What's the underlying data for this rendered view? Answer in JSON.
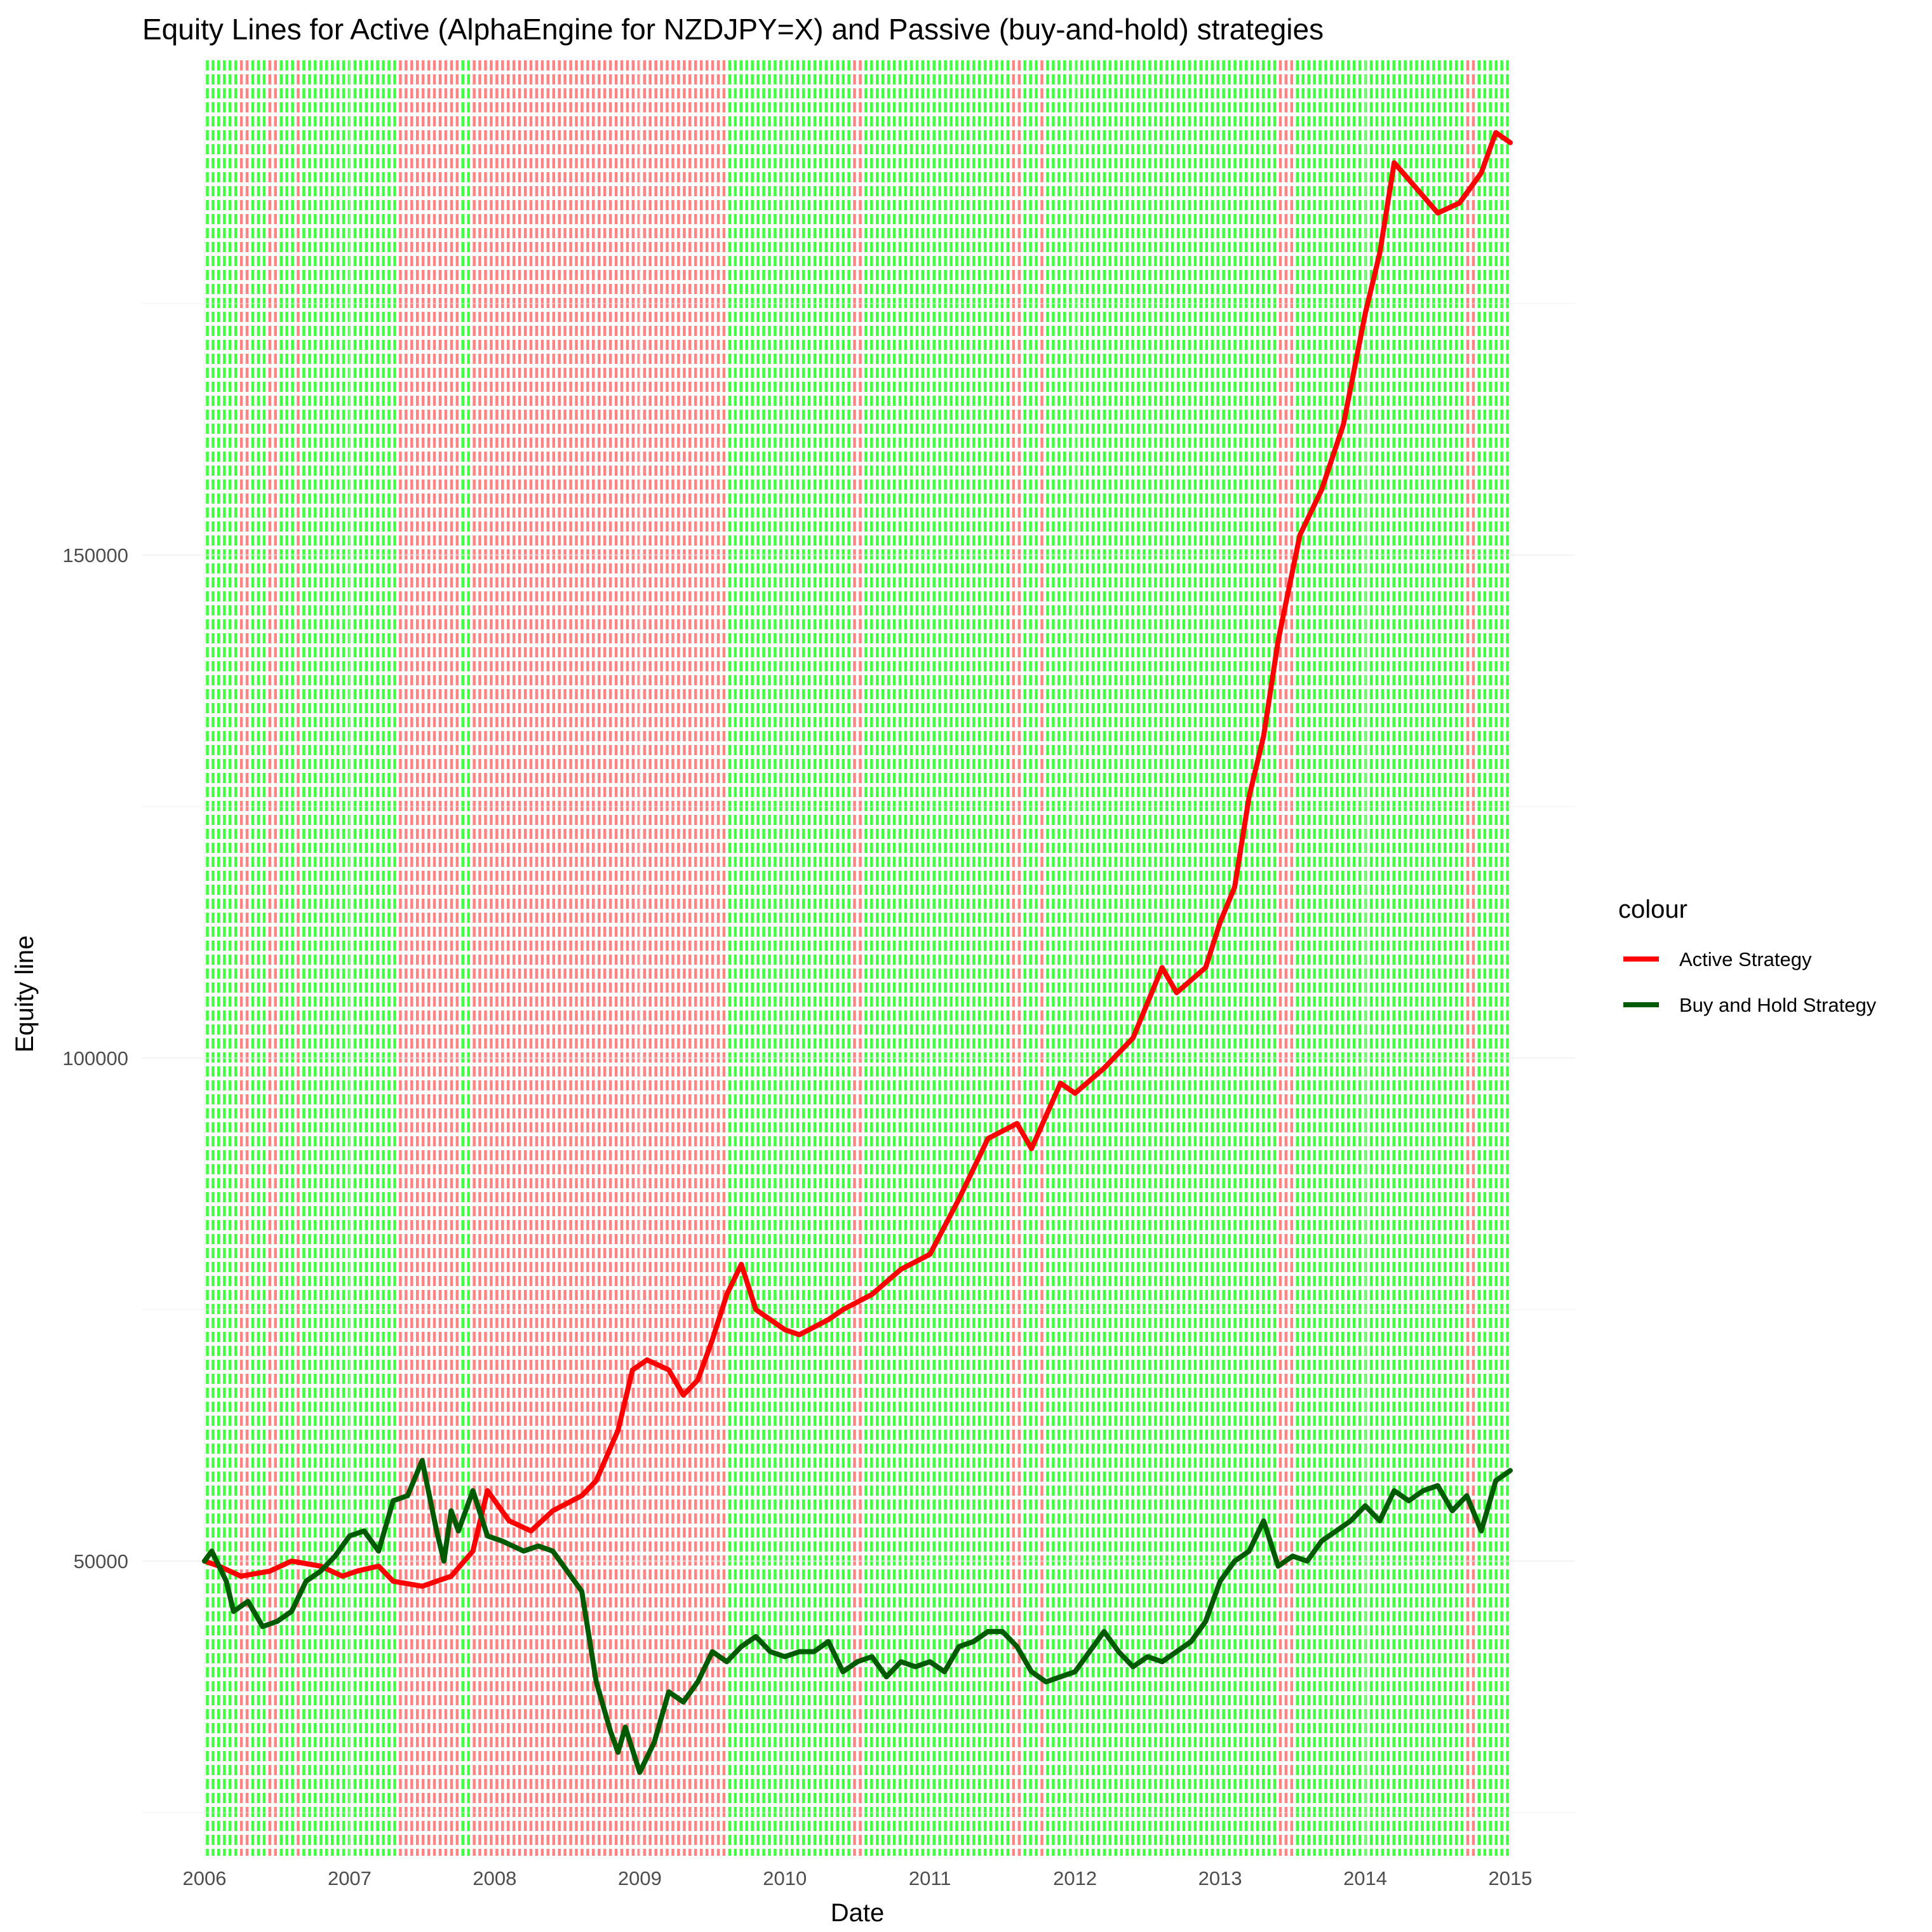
{
  "chart_data": {
    "type": "line",
    "title": "Equity Lines for Active (AlphaEngine for NZDJPY=X) and Passive (buy-and-hold) strategies",
    "xlabel": "Date",
    "ylabel": "Equity line",
    "x_ticks": [
      "2006",
      "2007",
      "2008",
      "2009",
      "2010",
      "2011",
      "2012",
      "2013",
      "2014",
      "2015"
    ],
    "y_ticks": [
      50000,
      100000,
      150000
    ],
    "xlim": [
      2006.0,
      2015.0
    ],
    "ylim": [
      24000,
      200000
    ],
    "grid": true,
    "legend": {
      "title": "colour",
      "placement": "right",
      "entries": [
        {
          "label": "Active Strategy",
          "color": "#ff0000"
        },
        {
          "label": "Buy and Hold Strategy",
          "color": "#005a00"
        }
      ]
    },
    "background_signal_colors": {
      "long": "#00ff00",
      "short": "#ff5a5a"
    },
    "short_signal_periods": [
      [
        2006.25,
        2006.3
      ],
      [
        2006.45,
        2006.5
      ],
      [
        2006.62,
        2006.68
      ],
      [
        2007.35,
        2007.75
      ],
      [
        2007.85,
        2009.6
      ],
      [
        2010.45,
        2010.55
      ],
      [
        2011.55,
        2011.65
      ],
      [
        2011.75,
        2011.8
      ],
      [
        2013.4,
        2013.52
      ],
      [
        2014.7,
        2014.75
      ]
    ],
    "series": [
      {
        "name": "Active Strategy",
        "color": "#ff0000",
        "x": [
          2006.0,
          2006.1,
          2006.25,
          2006.45,
          2006.6,
          2006.8,
          2006.95,
          2007.05,
          2007.2,
          2007.3,
          2007.5,
          2007.6,
          2007.7,
          2007.85,
          2007.95,
          2008.1,
          2008.25,
          2008.4,
          2008.6,
          2008.7,
          2008.85,
          2008.95,
          2009.05,
          2009.2,
          2009.3,
          2009.4,
          2009.5,
          2009.6,
          2009.7,
          2009.8,
          2009.9,
          2010.0,
          2010.1,
          2010.3,
          2010.4,
          2010.6,
          2010.8,
          2011.0,
          2011.2,
          2011.4,
          2011.6,
          2011.7,
          2011.9,
          2012.0,
          2012.2,
          2012.4,
          2012.6,
          2012.7,
          2012.9,
          2013.0,
          2013.1,
          2013.2,
          2013.3,
          2013.4,
          2013.55,
          2013.7,
          2013.85,
          2014.0,
          2014.1,
          2014.2,
          2014.35,
          2014.5,
          2014.65,
          2014.8,
          2014.9,
          2015.0
        ],
        "values": [
          50000,
          49500,
          48500,
          49000,
          50000,
          49500,
          48500,
          49000,
          49500,
          48000,
          47500,
          48000,
          48500,
          51000,
          57000,
          54000,
          53000,
          55000,
          56500,
          58000,
          63000,
          69000,
          70000,
          69000,
          66500,
          68000,
          72000,
          76500,
          79500,
          75000,
          74000,
          73000,
          72500,
          74000,
          75000,
          76500,
          79000,
          80500,
          86000,
          92000,
          93500,
          91000,
          97500,
          96500,
          99000,
          102000,
          109000,
          106500,
          109000,
          113500,
          117000,
          126000,
          132000,
          141500,
          152000,
          156500,
          163000,
          174000,
          180000,
          189000,
          186500,
          184000,
          185000,
          188000,
          192000,
          191000
        ]
      },
      {
        "name": "Buy and Hold Strategy",
        "color": "#005a00",
        "x": [
          2006.0,
          2006.05,
          2006.15,
          2006.2,
          2006.3,
          2006.4,
          2006.5,
          2006.6,
          2006.7,
          2006.8,
          2006.9,
          2007.0,
          2007.1,
          2007.2,
          2007.3,
          2007.4,
          2007.5,
          2007.6,
          2007.65,
          2007.7,
          2007.75,
          2007.85,
          2007.95,
          2008.05,
          2008.2,
          2008.3,
          2008.4,
          2008.5,
          2008.6,
          2008.7,
          2008.8,
          2008.85,
          2008.9,
          2009.0,
          2009.1,
          2009.2,
          2009.3,
          2009.4,
          2009.5,
          2009.6,
          2009.7,
          2009.8,
          2009.9,
          2010.0,
          2010.1,
          2010.2,
          2010.3,
          2010.4,
          2010.5,
          2010.6,
          2010.7,
          2010.8,
          2010.9,
          2011.0,
          2011.1,
          2011.2,
          2011.3,
          2011.4,
          2011.5,
          2011.6,
          2011.7,
          2011.8,
          2011.9,
          2012.0,
          2012.1,
          2012.2,
          2012.3,
          2012.4,
          2012.5,
          2012.6,
          2012.7,
          2012.8,
          2012.9,
          2013.0,
          2013.1,
          2013.2,
          2013.3,
          2013.4,
          2013.5,
          2013.6,
          2013.7,
          2013.8,
          2013.9,
          2014.0,
          2014.1,
          2014.2,
          2014.3,
          2014.4,
          2014.5,
          2014.6,
          2014.7,
          2014.8,
          2014.9,
          2015.0
        ],
        "values": [
          50000,
          51000,
          48000,
          45000,
          46000,
          43500,
          44000,
          45000,
          48000,
          49000,
          50500,
          52500,
          53000,
          51000,
          56000,
          56500,
          60000,
          53000,
          50000,
          55000,
          53000,
          57000,
          52500,
          52000,
          51000,
          51500,
          51000,
          49000,
          47000,
          38000,
          33000,
          31000,
          33500,
          29000,
          32000,
          37000,
          36000,
          38000,
          41000,
          40000,
          41500,
          42500,
          41000,
          40500,
          41000,
          41000,
          42000,
          39000,
          40000,
          40500,
          38500,
          40000,
          39500,
          40000,
          39000,
          41500,
          42000,
          43000,
          43000,
          41500,
          39000,
          38000,
          38500,
          39000,
          41000,
          43000,
          41000,
          39500,
          40500,
          40000,
          41000,
          42000,
          44000,
          48000,
          50000,
          51000,
          54000,
          49500,
          50500,
          50000,
          52000,
          53000,
          54000,
          55500,
          54000,
          57000,
          56000,
          57000,
          57500,
          55000,
          56500,
          53000,
          58000,
          59000
        ]
      }
    ]
  }
}
